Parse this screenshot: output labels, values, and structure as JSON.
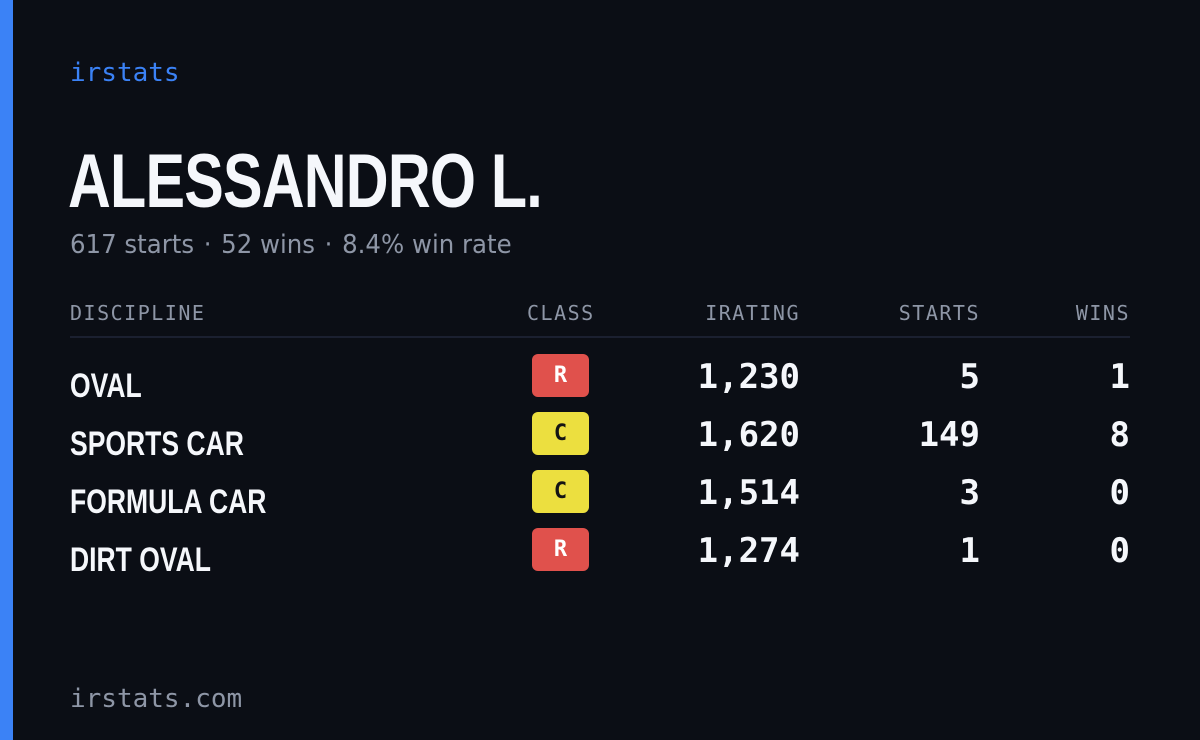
{
  "brand": "irstats",
  "player": {
    "name": "ALESSANDRO L.",
    "starts_text": "617 starts",
    "wins_text": "52 wins",
    "win_rate_text": "8.4% win rate",
    "separator": "·"
  },
  "table": {
    "headers": {
      "discipline": "DISCIPLINE",
      "class": "CLASS",
      "irating": "IRATING",
      "starts": "STARTS",
      "wins": "WINS"
    },
    "rows": [
      {
        "discipline": "OVAL",
        "class": "R",
        "class_color": "#e0514c",
        "class_text_color": "#ffffff",
        "irating": "1,230",
        "starts": "5",
        "wins": "1"
      },
      {
        "discipline": "SPORTS CAR",
        "class": "C",
        "class_color": "#ecdf3f",
        "class_text_color": "#141414",
        "irating": "1,620",
        "starts": "149",
        "wins": "8"
      },
      {
        "discipline": "FORMULA CAR",
        "class": "C",
        "class_color": "#ecdf3f",
        "class_text_color": "#141414",
        "irating": "1,514",
        "starts": "3",
        "wins": "0"
      },
      {
        "discipline": "DIRT OVAL",
        "class": "R",
        "class_color": "#e0514c",
        "class_text_color": "#ffffff",
        "irating": "1,274",
        "starts": "1",
        "wins": "0"
      }
    ]
  },
  "footer": "irstats.com",
  "colors": {
    "accent": "#3b82f6",
    "background": "#0b0e15",
    "muted": "#8e96a6",
    "text": "#f5f7fb"
  }
}
